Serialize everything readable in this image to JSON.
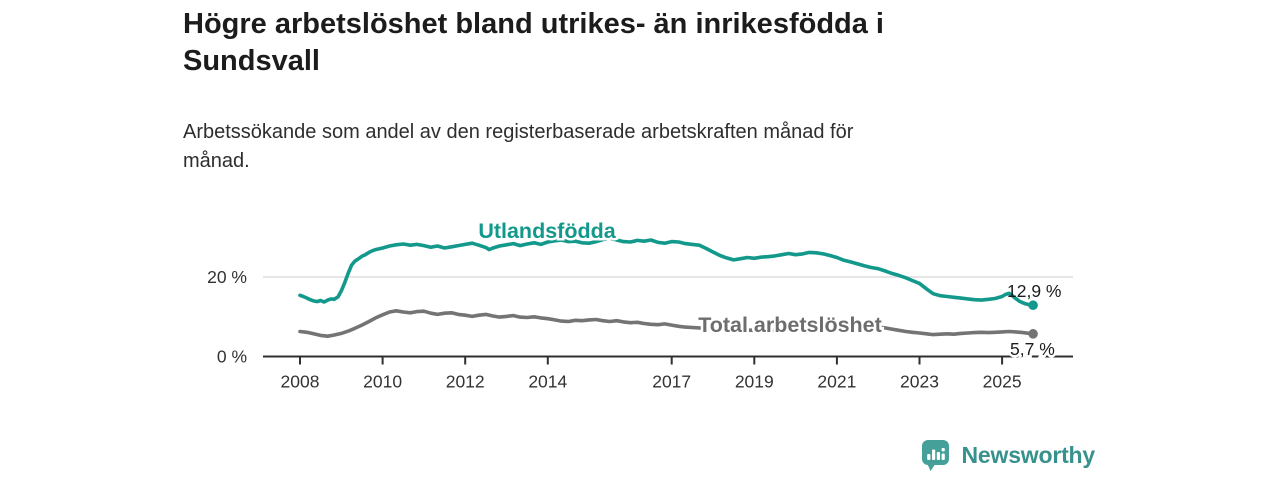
{
  "header": {
    "title_lines": [
      "Högre arbetslöshet bland utrikes- än inrikesfödda i",
      "Sundsvall"
    ],
    "subtitle_lines": [
      "Arbetssökande som andel av den registerbaserade arbetskraften månad för",
      "månad."
    ]
  },
  "footer": {
    "brand": "Newsworthy",
    "brand_color": "#37918c",
    "logo_icon": "bar-chart-speech-bubble-icon",
    "logo_color": "#46a09a"
  },
  "chart_data": {
    "type": "line",
    "title": "Högre arbetslöshet bland utrikes- än inrikesfödda i Sundsvall",
    "subtitle": "Arbetssökande som andel av den registerbaserade arbetskraften månad för månad.",
    "unit": "%",
    "grid": "y-only",
    "legend_position": "inline-labels",
    "colors": {
      "axis": "#2f2f2f",
      "grid": "#d8d8d8",
      "tick_text": "#333333",
      "value_text": "#1c1c1c"
    },
    "x_axis": {
      "range": [
        2007.1,
        2026.7
      ],
      "ticks": [
        2008,
        2010,
        2012,
        2014,
        2017,
        2019,
        2021,
        2023,
        2025
      ]
    },
    "y_axis": {
      "range": [
        0,
        32
      ],
      "ticks": [
        {
          "value": 0,
          "label": "0 %"
        },
        {
          "value": 20,
          "label": "20 %"
        }
      ]
    },
    "series": [
      {
        "name": "Utlandsfödda",
        "color": "#13998c",
        "label_color": "#13998c",
        "end_value": 12.9,
        "end_label": "12,9 %",
        "points": [
          [
            2008.0,
            15.4
          ],
          [
            2008.08,
            15.1
          ],
          [
            2008.17,
            14.7
          ],
          [
            2008.25,
            14.3
          ],
          [
            2008.33,
            14.0
          ],
          [
            2008.42,
            13.8
          ],
          [
            2008.5,
            14.1
          ],
          [
            2008.58,
            13.7
          ],
          [
            2008.67,
            14.2
          ],
          [
            2008.75,
            14.5
          ],
          [
            2008.83,
            14.4
          ],
          [
            2008.92,
            15.0
          ],
          [
            2009.0,
            16.5
          ],
          [
            2009.08,
            18.5
          ],
          [
            2009.17,
            21.0
          ],
          [
            2009.25,
            23.0
          ],
          [
            2009.33,
            24.0
          ],
          [
            2009.42,
            24.6
          ],
          [
            2009.5,
            25.2
          ],
          [
            2009.58,
            25.6
          ],
          [
            2009.67,
            26.2
          ],
          [
            2009.75,
            26.6
          ],
          [
            2009.83,
            26.9
          ],
          [
            2009.92,
            27.1
          ],
          [
            2010.0,
            27.3
          ],
          [
            2010.17,
            27.8
          ],
          [
            2010.33,
            28.1
          ],
          [
            2010.5,
            28.3
          ],
          [
            2010.67,
            28.0
          ],
          [
            2010.83,
            28.2
          ],
          [
            2011.0,
            27.9
          ],
          [
            2011.17,
            27.5
          ],
          [
            2011.33,
            27.8
          ],
          [
            2011.5,
            27.3
          ],
          [
            2011.67,
            27.6
          ],
          [
            2011.83,
            27.9
          ],
          [
            2012.0,
            28.2
          ],
          [
            2012.17,
            28.5
          ],
          [
            2012.33,
            28.0
          ],
          [
            2012.5,
            27.4
          ],
          [
            2012.58,
            26.9
          ],
          [
            2012.67,
            27.3
          ],
          [
            2012.83,
            27.8
          ],
          [
            2013.0,
            28.1
          ],
          [
            2013.17,
            28.4
          ],
          [
            2013.33,
            27.9
          ],
          [
            2013.5,
            28.3
          ],
          [
            2013.67,
            28.6
          ],
          [
            2013.83,
            28.2
          ],
          [
            2014.0,
            28.8
          ],
          [
            2014.17,
            29.1
          ],
          [
            2014.33,
            29.3
          ],
          [
            2014.5,
            28.9
          ],
          [
            2014.67,
            29.0
          ],
          [
            2014.83,
            28.6
          ],
          [
            2015.0,
            28.5
          ],
          [
            2015.17,
            28.9
          ],
          [
            2015.33,
            29.4
          ],
          [
            2015.5,
            29.8
          ],
          [
            2015.67,
            29.3
          ],
          [
            2015.83,
            28.9
          ],
          [
            2016.0,
            28.8
          ],
          [
            2016.17,
            29.2
          ],
          [
            2016.33,
            29.0
          ],
          [
            2016.5,
            29.3
          ],
          [
            2016.67,
            28.7
          ],
          [
            2016.83,
            28.5
          ],
          [
            2017.0,
            28.9
          ],
          [
            2017.17,
            28.8
          ],
          [
            2017.33,
            28.4
          ],
          [
            2017.5,
            28.2
          ],
          [
            2017.67,
            28.0
          ],
          [
            2017.83,
            27.2
          ],
          [
            2018.0,
            26.3
          ],
          [
            2018.17,
            25.4
          ],
          [
            2018.33,
            24.8
          ],
          [
            2018.5,
            24.3
          ],
          [
            2018.67,
            24.6
          ],
          [
            2018.83,
            24.9
          ],
          [
            2019.0,
            24.7
          ],
          [
            2019.17,
            25.0
          ],
          [
            2019.33,
            25.1
          ],
          [
            2019.5,
            25.3
          ],
          [
            2019.67,
            25.6
          ],
          [
            2019.83,
            25.9
          ],
          [
            2020.0,
            25.6
          ],
          [
            2020.17,
            25.8
          ],
          [
            2020.33,
            26.2
          ],
          [
            2020.5,
            26.1
          ],
          [
            2020.67,
            25.8
          ],
          [
            2020.83,
            25.4
          ],
          [
            2021.0,
            24.9
          ],
          [
            2021.17,
            24.2
          ],
          [
            2021.33,
            23.8
          ],
          [
            2021.5,
            23.3
          ],
          [
            2021.67,
            22.8
          ],
          [
            2021.83,
            22.4
          ],
          [
            2022.0,
            22.1
          ],
          [
            2022.17,
            21.5
          ],
          [
            2022.33,
            20.9
          ],
          [
            2022.5,
            20.4
          ],
          [
            2022.67,
            19.8
          ],
          [
            2022.83,
            19.1
          ],
          [
            2023.0,
            18.4
          ],
          [
            2023.17,
            17.0
          ],
          [
            2023.33,
            15.8
          ],
          [
            2023.5,
            15.3
          ],
          [
            2023.67,
            15.1
          ],
          [
            2023.83,
            14.9
          ],
          [
            2024.0,
            14.7
          ],
          [
            2024.17,
            14.5
          ],
          [
            2024.33,
            14.3
          ],
          [
            2024.5,
            14.2
          ],
          [
            2024.67,
            14.4
          ],
          [
            2024.83,
            14.6
          ],
          [
            2025.0,
            15.1
          ],
          [
            2025.08,
            15.6
          ],
          [
            2025.17,
            15.9
          ],
          [
            2025.25,
            15.3
          ],
          [
            2025.33,
            14.6
          ],
          [
            2025.42,
            13.9
          ],
          [
            2025.5,
            13.5
          ],
          [
            2025.58,
            13.2
          ],
          [
            2025.67,
            13.0
          ],
          [
            2025.75,
            12.9
          ]
        ]
      },
      {
        "name": "Total arbetslöshet",
        "color": "#747474",
        "label_color": "#6d6d6d",
        "end_value": 5.7,
        "end_label": "5,7 %",
        "points": [
          [
            2008.0,
            6.3
          ],
          [
            2008.17,
            6.1
          ],
          [
            2008.33,
            5.7
          ],
          [
            2008.5,
            5.3
          ],
          [
            2008.67,
            5.1
          ],
          [
            2008.83,
            5.4
          ],
          [
            2009.0,
            5.8
          ],
          [
            2009.17,
            6.4
          ],
          [
            2009.33,
            7.1
          ],
          [
            2009.5,
            7.9
          ],
          [
            2009.67,
            8.8
          ],
          [
            2009.83,
            9.7
          ],
          [
            2010.0,
            10.5
          ],
          [
            2010.17,
            11.2
          ],
          [
            2010.33,
            11.5
          ],
          [
            2010.5,
            11.2
          ],
          [
            2010.67,
            11.0
          ],
          [
            2010.83,
            11.3
          ],
          [
            2011.0,
            11.4
          ],
          [
            2011.17,
            10.9
          ],
          [
            2011.33,
            10.6
          ],
          [
            2011.5,
            10.9
          ],
          [
            2011.67,
            11.0
          ],
          [
            2011.83,
            10.6
          ],
          [
            2012.0,
            10.4
          ],
          [
            2012.17,
            10.1
          ],
          [
            2012.33,
            10.4
          ],
          [
            2012.5,
            10.6
          ],
          [
            2012.67,
            10.2
          ],
          [
            2012.83,
            9.9
          ],
          [
            2013.0,
            10.1
          ],
          [
            2013.17,
            10.3
          ],
          [
            2013.33,
            9.9
          ],
          [
            2013.5,
            9.8
          ],
          [
            2013.67,
            10.0
          ],
          [
            2013.83,
            9.7
          ],
          [
            2014.0,
            9.5
          ],
          [
            2014.17,
            9.2
          ],
          [
            2014.33,
            8.9
          ],
          [
            2014.5,
            8.8
          ],
          [
            2014.67,
            9.1
          ],
          [
            2014.83,
            9.0
          ],
          [
            2015.0,
            9.2
          ],
          [
            2015.17,
            9.3
          ],
          [
            2015.33,
            9.0
          ],
          [
            2015.5,
            8.8
          ],
          [
            2015.67,
            9.0
          ],
          [
            2015.83,
            8.7
          ],
          [
            2016.0,
            8.5
          ],
          [
            2016.17,
            8.6
          ],
          [
            2016.33,
            8.3
          ],
          [
            2016.5,
            8.1
          ],
          [
            2016.67,
            8.0
          ],
          [
            2016.83,
            8.2
          ],
          [
            2017.0,
            7.9
          ],
          [
            2017.17,
            7.6
          ],
          [
            2017.33,
            7.4
          ],
          [
            2017.5,
            7.3
          ],
          [
            2017.67,
            7.2
          ],
          [
            2017.83,
            7.1
          ],
          [
            2018.0,
            7.0
          ],
          [
            2018.33,
            6.9
          ],
          [
            2018.67,
            6.7
          ],
          [
            2019.0,
            6.6
          ],
          [
            2019.33,
            6.5
          ],
          [
            2019.67,
            6.6
          ],
          [
            2020.0,
            7.0
          ],
          [
            2020.25,
            8.3
          ],
          [
            2020.5,
            8.8
          ],
          [
            2020.75,
            8.6
          ],
          [
            2021.0,
            8.3
          ],
          [
            2021.33,
            7.9
          ],
          [
            2021.67,
            7.6
          ],
          [
            2022.0,
            7.4
          ],
          [
            2022.17,
            7.2
          ],
          [
            2022.33,
            6.9
          ],
          [
            2022.5,
            6.6
          ],
          [
            2022.67,
            6.3
          ],
          [
            2022.83,
            6.1
          ],
          [
            2023.0,
            5.9
          ],
          [
            2023.17,
            5.7
          ],
          [
            2023.33,
            5.5
          ],
          [
            2023.5,
            5.6
          ],
          [
            2023.67,
            5.7
          ],
          [
            2023.83,
            5.6
          ],
          [
            2024.0,
            5.8
          ],
          [
            2024.17,
            5.9
          ],
          [
            2024.33,
            6.0
          ],
          [
            2024.5,
            6.1
          ],
          [
            2024.67,
            6.0
          ],
          [
            2024.83,
            6.1
          ],
          [
            2025.0,
            6.2
          ],
          [
            2025.17,
            6.3
          ],
          [
            2025.33,
            6.2
          ],
          [
            2025.5,
            6.0
          ],
          [
            2025.67,
            5.8
          ],
          [
            2025.75,
            5.7
          ]
        ]
      }
    ]
  }
}
